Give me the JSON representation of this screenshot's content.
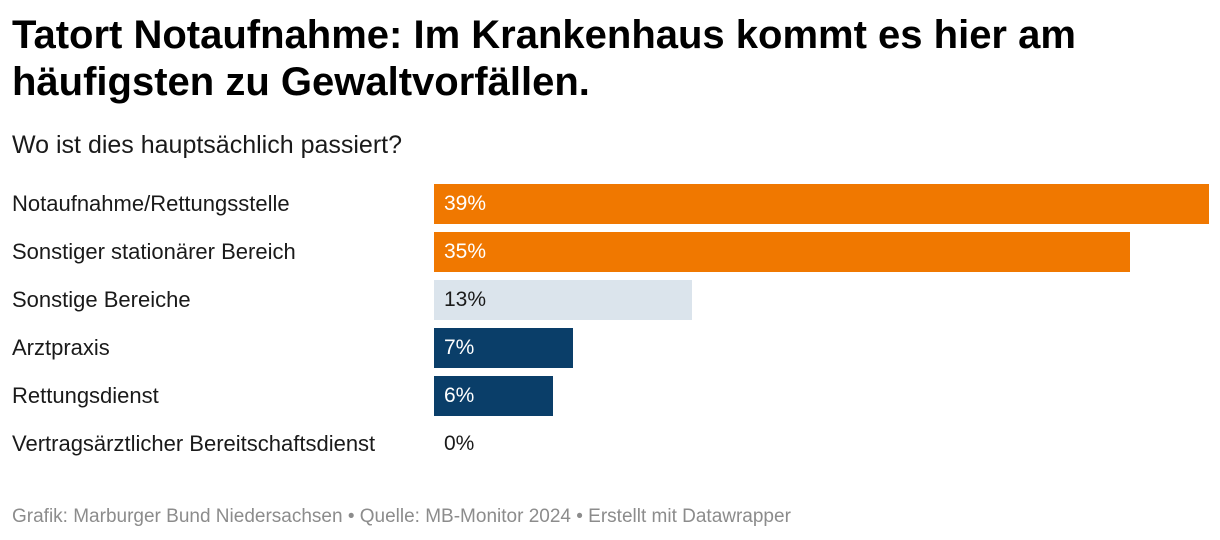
{
  "chart_data": {
    "type": "bar",
    "orientation": "horizontal",
    "title": "Tatort Notaufnahme: Im Krankenhaus kommt es hier am häufigsten zu Gewaltvorfällen.",
    "subtitle": "Wo ist dies hauptsächlich passiert?",
    "categories": [
      "Notaufnahme/Rettungsstelle",
      "Sonstiger stationärer Bereich",
      "Sonstige Bereiche",
      "Arztpraxis",
      "Rettungsdienst",
      "Vertragsärztlicher Bereitschaftsdienst"
    ],
    "values": [
      39,
      35,
      13,
      7,
      6,
      0
    ],
    "value_labels": [
      "39%",
      "35%",
      "13%",
      "7%",
      "6%",
      "0%"
    ],
    "bar_colors": [
      "#f07800",
      "#f07800",
      "#dbe4ec",
      "#0a3e69",
      "#0a3e69",
      "#0a3e69"
    ],
    "label_colors": [
      "#ffffff",
      "#ffffff",
      "#1a1a1a",
      "#ffffff",
      "#ffffff",
      "#1a1a1a"
    ],
    "xlim": [
      0,
      39
    ],
    "xlabel": "",
    "ylabel": "",
    "grid": false,
    "legend": "none"
  },
  "footer": {
    "text": "Grafik: Marburger Bund Niedersachsen • Quelle: MB-Monitor 2024 • Erstellt mit Datawrapper"
  }
}
